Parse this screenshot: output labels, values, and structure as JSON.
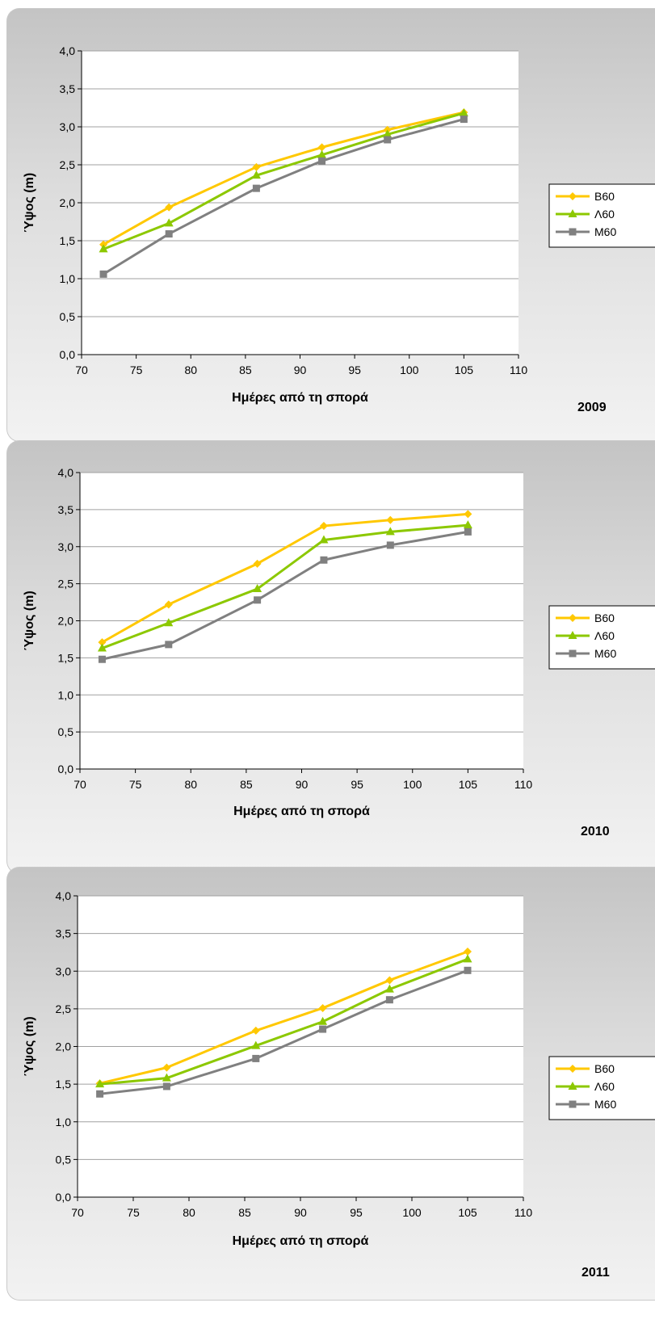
{
  "chart_data": [
    {
      "type": "line",
      "year_label": "2009",
      "xlabel": "Ημέρες από τη σπορά",
      "ylabel": "Ύψος (m)",
      "xlim": [
        70,
        110
      ],
      "ylim": [
        0,
        4
      ],
      "x_ticks": [
        "70",
        "75",
        "80",
        "85",
        "90",
        "95",
        "100",
        "105",
        "110"
      ],
      "y_ticks": [
        "0,0",
        "0,5",
        "1,0",
        "1,5",
        "2,0",
        "2,5",
        "3,0",
        "3,5",
        "4,0"
      ],
      "grid": true,
      "legend_position": "right",
      "x": [
        72,
        78,
        86,
        92,
        98,
        105
      ],
      "series": [
        {
          "name": "Β60",
          "color": "#FFC800",
          "marker": "diamond",
          "values": [
            1.45,
            1.94,
            2.47,
            2.73,
            2.96,
            3.19
          ]
        },
        {
          "name": "Λ60",
          "color": "#8CC800",
          "marker": "triangle",
          "values": [
            1.39,
            1.73,
            2.36,
            2.63,
            2.9,
            3.18
          ]
        },
        {
          "name": "Μ60",
          "color": "#808080",
          "marker": "square",
          "values": [
            1.06,
            1.59,
            2.19,
            2.55,
            2.83,
            3.1
          ]
        }
      ]
    },
    {
      "type": "line",
      "year_label": "2010",
      "xlabel": "Ημέρες από τη σπορά",
      "ylabel": "Ύψος (m)",
      "xlim": [
        70,
        110
      ],
      "ylim": [
        0,
        4
      ],
      "x_ticks": [
        "70",
        "75",
        "80",
        "85",
        "90",
        "95",
        "100",
        "105",
        "110"
      ],
      "y_ticks": [
        "0,0",
        "0,5",
        "1,0",
        "1,5",
        "2,0",
        "2,5",
        "3,0",
        "3,5",
        "4,0"
      ],
      "grid": true,
      "legend_position": "right",
      "x": [
        72,
        78,
        86,
        92,
        98,
        105
      ],
      "series": [
        {
          "name": "Β60",
          "color": "#FFC800",
          "marker": "diamond",
          "values": [
            1.71,
            2.22,
            2.77,
            3.28,
            3.36,
            3.44
          ]
        },
        {
          "name": "Λ60",
          "color": "#8CC800",
          "marker": "triangle",
          "values": [
            1.63,
            1.97,
            2.43,
            3.09,
            3.2,
            3.29
          ]
        },
        {
          "name": "Μ60",
          "color": "#808080",
          "marker": "square",
          "values": [
            1.48,
            1.68,
            2.28,
            2.82,
            3.02,
            3.2
          ]
        }
      ]
    },
    {
      "type": "line",
      "year_label": "2011",
      "xlabel": "Ημέρες από τη σπορά",
      "ylabel": "Ύψος (m)",
      "xlim": [
        70,
        110
      ],
      "ylim": [
        0,
        4
      ],
      "x_ticks": [
        "70",
        "75",
        "80",
        "85",
        "90",
        "95",
        "100",
        "105",
        "110"
      ],
      "y_ticks": [
        "0,0",
        "0,5",
        "1,0",
        "1,5",
        "2,0",
        "2,5",
        "3,0",
        "3,5",
        "4,0"
      ],
      "grid": true,
      "legend_position": "right",
      "x": [
        72,
        78,
        86,
        92,
        98,
        105
      ],
      "series": [
        {
          "name": "Β60",
          "color": "#FFC800",
          "marker": "diamond",
          "values": [
            1.51,
            1.72,
            2.21,
            2.51,
            2.88,
            3.26
          ]
        },
        {
          "name": "Λ60",
          "color": "#8CC800",
          "marker": "triangle",
          "values": [
            1.5,
            1.58,
            2.01,
            2.33,
            2.76,
            3.16
          ]
        },
        {
          "name": "Μ60",
          "color": "#808080",
          "marker": "square",
          "values": [
            1.37,
            1.47,
            1.84,
            2.23,
            2.62,
            3.01
          ]
        }
      ]
    }
  ]
}
